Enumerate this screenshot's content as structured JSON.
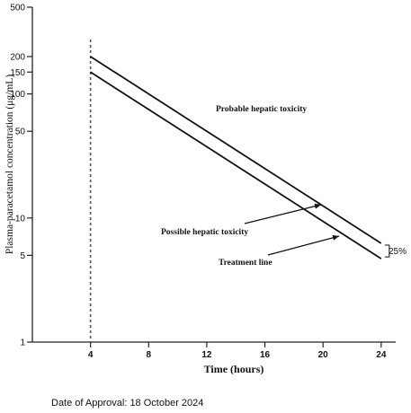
{
  "chart_data": {
    "type": "line",
    "xlabel": "Time (hours)",
    "ylabel": "Plasma-paracetamol concentration (μg/mL)",
    "yscale": "log",
    "xlim": [
      0,
      25
    ],
    "ylim": [
      1,
      500
    ],
    "xticks": [
      4,
      8,
      12,
      16,
      20,
      24
    ],
    "yticks": [
      1,
      5,
      10,
      50,
      100,
      150,
      200,
      500
    ],
    "grid": false,
    "series": [
      {
        "name": "Probable hepatic toxicity",
        "x": [
          4,
          24
        ],
        "y": [
          200,
          6.25
        ]
      },
      {
        "name": "Treatment line",
        "x": [
          4,
          24
        ],
        "y": [
          150,
          4.7
        ]
      }
    ],
    "reference_lines": [
      {
        "orientation": "vertical",
        "x": 4,
        "style": "dashed"
      }
    ],
    "annotations": [
      {
        "text": "Probable hepatic toxicity"
      },
      {
        "text": "Possible hepatic toxicity"
      },
      {
        "text": "Treatment line"
      },
      {
        "text": "25%"
      }
    ]
  },
  "footer": {
    "approval": "Date of Approval: 18 October 2024"
  }
}
